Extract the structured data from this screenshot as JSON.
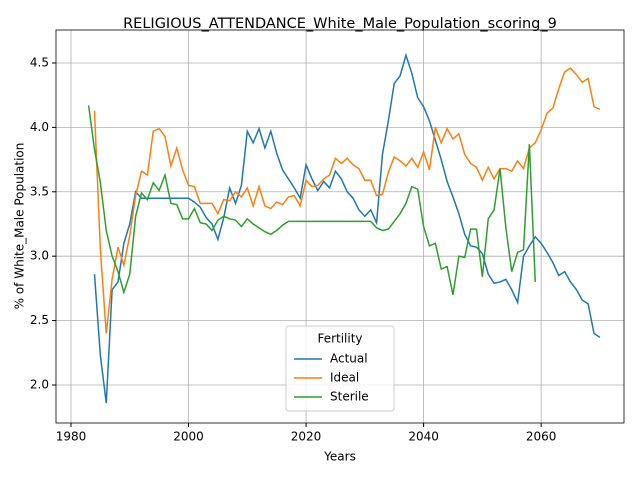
{
  "chart_data": {
    "type": "line",
    "title": "RELIGIOUS_ATTENDANCE_White_Male_Population_scoring_9",
    "xlabel": "Years",
    "ylabel": "% of White_Male Population",
    "legend_title": "Fertility",
    "legend_loc": "lower center",
    "grid": true,
    "x": [
      1983,
      1984,
      1985,
      1986,
      1987,
      1988,
      1989,
      1990,
      1991,
      1992,
      1993,
      1994,
      1995,
      1996,
      1997,
      1998,
      1999,
      2000,
      2001,
      2002,
      2003,
      2004,
      2005,
      2006,
      2007,
      2008,
      2009,
      2010,
      2011,
      2012,
      2013,
      2014,
      2015,
      2016,
      2017,
      2018,
      2019,
      2020,
      2021,
      2022,
      2023,
      2024,
      2025,
      2026,
      2027,
      2028,
      2029,
      2030,
      2031,
      2032,
      2033,
      2034,
      2035,
      2036,
      2037,
      2038,
      2039,
      2040,
      2041,
      2042,
      2043,
      2044,
      2045,
      2046,
      2047,
      2048,
      2049,
      2050,
      2051,
      2052,
      2053,
      2054,
      2055,
      2056,
      2057,
      2058,
      2059,
      2060,
      2061,
      2062,
      2063,
      2064,
      2065,
      2066,
      2067,
      2068,
      2069,
      2070
    ],
    "series": [
      {
        "name": "Actual",
        "color": "#1f77b4",
        "values": [
          null,
          2.86,
          2.23,
          1.86,
          2.74,
          2.8,
          3.1,
          3.25,
          3.5,
          3.45,
          3.45,
          3.45,
          3.45,
          3.45,
          3.45,
          3.45,
          3.45,
          3.45,
          3.42,
          3.38,
          3.3,
          3.25,
          3.13,
          3.3,
          3.53,
          3.41,
          3.55,
          3.97,
          3.88,
          3.99,
          3.84,
          3.97,
          3.8,
          3.67,
          3.6,
          3.53,
          3.45,
          3.71,
          3.6,
          3.51,
          3.58,
          3.53,
          3.66,
          3.6,
          3.5,
          3.45,
          3.36,
          3.31,
          3.36,
          3.26,
          3.79,
          4.05,
          4.34,
          4.4,
          4.56,
          4.42,
          4.23,
          4.16,
          4.05,
          3.9,
          3.75,
          3.58,
          3.46,
          3.33,
          3.17,
          3.08,
          3.07,
          3.02,
          2.86,
          2.79,
          2.8,
          2.82,
          2.74,
          2.64,
          3.0,
          3.08,
          3.15,
          3.1,
          3.03,
          2.95,
          2.85,
          2.88,
          2.8,
          2.74,
          2.66,
          2.63,
          2.4,
          2.37
        ]
      },
      {
        "name": "Ideal",
        "color": "#ff7f0e",
        "values": [
          null,
          4.13,
          3.05,
          2.4,
          2.82,
          3.07,
          2.93,
          3.16,
          3.47,
          3.66,
          3.63,
          3.97,
          3.99,
          3.93,
          3.7,
          3.84,
          3.67,
          3.55,
          3.54,
          3.41,
          3.41,
          3.41,
          3.33,
          3.44,
          3.43,
          3.5,
          3.46,
          3.53,
          3.39,
          3.54,
          3.39,
          3.37,
          3.42,
          3.4,
          3.46,
          3.47,
          3.39,
          3.59,
          3.54,
          3.55,
          3.6,
          3.63,
          3.76,
          3.72,
          3.76,
          3.71,
          3.68,
          3.59,
          3.59,
          3.47,
          3.48,
          3.65,
          3.77,
          3.74,
          3.7,
          3.76,
          3.69,
          3.81,
          3.67,
          4.0,
          3.88,
          3.99,
          3.91,
          3.95,
          3.79,
          3.72,
          3.69,
          3.59,
          3.69,
          3.6,
          3.68,
          3.68,
          3.66,
          3.74,
          3.68,
          3.84,
          3.88,
          3.98,
          4.11,
          4.15,
          4.3,
          4.43,
          4.46,
          4.41,
          4.35,
          4.38,
          4.16,
          4.14
        ]
      },
      {
        "name": "Sterile",
        "color": "#2ca02c",
        "values": [
          4.17,
          3.83,
          3.57,
          3.2,
          3.0,
          2.88,
          2.72,
          2.86,
          3.31,
          3.49,
          3.44,
          3.57,
          3.51,
          3.63,
          3.41,
          3.4,
          3.29,
          3.29,
          3.37,
          3.26,
          3.25,
          3.2,
          3.28,
          3.31,
          3.29,
          3.28,
          3.23,
          3.29,
          3.25,
          3.22,
          3.19,
          3.17,
          3.2,
          3.24,
          3.27,
          3.27,
          3.27,
          3.27,
          3.27,
          3.27,
          3.27,
          3.27,
          3.27,
          3.27,
          3.27,
          3.27,
          3.27,
          3.27,
          3.27,
          3.22,
          3.2,
          3.21,
          3.27,
          3.33,
          3.41,
          3.54,
          3.52,
          3.23,
          3.08,
          3.1,
          2.9,
          2.92,
          2.7,
          3.0,
          2.99,
          3.21,
          3.21,
          2.84,
          3.29,
          3.36,
          3.68,
          3.22,
          2.88,
          3.03,
          3.05,
          3.87,
          2.8,
          null,
          null,
          null,
          null,
          null,
          null,
          null,
          null,
          null,
          null,
          null
        ]
      }
    ],
    "xlim": [
      1977.45,
      2074.1
    ],
    "xticks": [
      1980,
      2000,
      2020,
      2040,
      2060
    ],
    "ylim": [
      1.705,
      4.756
    ],
    "yticks": [
      {
        "value": 2,
        "label": "2.0"
      },
      {
        "value": 2.5,
        "label": "2.5"
      },
      {
        "value": 3,
        "label": "3.0"
      },
      {
        "value": 3.5,
        "label": "3.5"
      },
      {
        "value": 4,
        "label": "4.0"
      },
      {
        "value": 4.5,
        "label": "4.5"
      }
    ]
  }
}
